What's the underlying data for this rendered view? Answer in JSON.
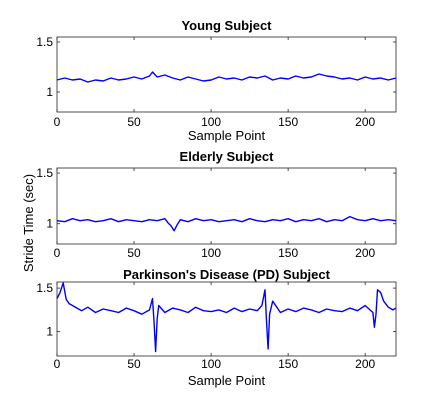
{
  "chart_data": [
    {
      "type": "line",
      "title": "Young Subject",
      "xlabel": "Sample Point",
      "ylabel": "",
      "xlim": [
        0,
        220
      ],
      "ylim": [
        0.8,
        1.55
      ],
      "xticks": [
        0,
        50,
        100,
        150,
        200
      ],
      "yticks": [
        1,
        1.5
      ],
      "ytick_labels": [
        "1",
        "1.5"
      ],
      "series": [
        {
          "color": "#0000ff",
          "x": [
            0,
            5,
            10,
            15,
            20,
            25,
            30,
            35,
            40,
            45,
            50,
            55,
            60,
            62,
            65,
            70,
            75,
            80,
            85,
            90,
            95,
            100,
            105,
            110,
            115,
            120,
            125,
            130,
            135,
            140,
            145,
            150,
            155,
            160,
            165,
            170,
            175,
            180,
            185,
            190,
            195,
            200,
            205,
            210,
            215,
            220
          ],
          "y": [
            1.12,
            1.14,
            1.12,
            1.13,
            1.1,
            1.12,
            1.11,
            1.14,
            1.12,
            1.13,
            1.15,
            1.13,
            1.16,
            1.2,
            1.15,
            1.17,
            1.14,
            1.12,
            1.15,
            1.13,
            1.11,
            1.12,
            1.15,
            1.13,
            1.14,
            1.12,
            1.15,
            1.14,
            1.16,
            1.12,
            1.14,
            1.13,
            1.16,
            1.14,
            1.15,
            1.18,
            1.16,
            1.15,
            1.13,
            1.14,
            1.12,
            1.15,
            1.13,
            1.14,
            1.12,
            1.14
          ]
        }
      ]
    },
    {
      "type": "line",
      "title": "Elderly Subject",
      "xlabel": "",
      "ylabel": "",
      "xlim": [
        0,
        220
      ],
      "ylim": [
        0.8,
        1.55
      ],
      "xticks": [
        0,
        50,
        100,
        150,
        200
      ],
      "yticks": [
        1,
        1.5
      ],
      "ytick_labels": [
        "1",
        "1.5"
      ],
      "series": [
        {
          "color": "#0000ff",
          "x": [
            0,
            5,
            10,
            15,
            20,
            25,
            30,
            35,
            40,
            45,
            50,
            55,
            60,
            65,
            70,
            72,
            74,
            76,
            78,
            80,
            85,
            90,
            95,
            100,
            105,
            110,
            115,
            120,
            125,
            130,
            135,
            140,
            145,
            150,
            155,
            160,
            165,
            170,
            175,
            180,
            185,
            190,
            195,
            200,
            205,
            210,
            215,
            220
          ],
          "y": [
            1.03,
            1.02,
            1.05,
            1.03,
            1.04,
            1.02,
            1.03,
            1.05,
            1.02,
            1.04,
            1.03,
            1.02,
            1.04,
            1.03,
            1.05,
            1.01,
            0.98,
            0.93,
            0.99,
            1.04,
            1.02,
            1.05,
            1.03,
            1.04,
            1.02,
            1.03,
            1.04,
            1.02,
            1.05,
            1.03,
            1.02,
            1.04,
            1.03,
            1.05,
            1.02,
            1.04,
            1.03,
            1.05,
            1.02,
            1.04,
            1.03,
            1.07,
            1.04,
            1.03,
            1.05,
            1.03,
            1.04,
            1.03
          ]
        }
      ]
    },
    {
      "type": "line",
      "title": "Parkinson's Disease (PD) Subject",
      "xlabel": "Sample Point",
      "ylabel": "",
      "xlim": [
        0,
        220
      ],
      "ylim": [
        0.72,
        1.57
      ],
      "xticks": [
        0,
        50,
        100,
        150,
        200
      ],
      "yticks": [
        1,
        1.5
      ],
      "ytick_labels": [
        "1",
        "1.5"
      ],
      "series": [
        {
          "color": "#0000ff",
          "x": [
            0,
            2,
            4,
            6,
            8,
            10,
            13,
            16,
            20,
            25,
            30,
            35,
            40,
            45,
            50,
            55,
            60,
            62,
            63,
            64,
            65,
            66,
            70,
            75,
            80,
            85,
            90,
            95,
            100,
            105,
            110,
            115,
            120,
            125,
            130,
            133,
            135,
            136,
            137,
            138,
            140,
            145,
            150,
            155,
            160,
            165,
            170,
            175,
            180,
            185,
            190,
            195,
            200,
            205,
            206,
            207,
            208,
            210,
            212,
            215,
            218,
            220
          ],
          "y": [
            1.38,
            1.45,
            1.56,
            1.37,
            1.32,
            1.3,
            1.27,
            1.24,
            1.28,
            1.22,
            1.26,
            1.24,
            1.22,
            1.27,
            1.24,
            1.2,
            1.25,
            1.38,
            1.1,
            0.77,
            1.15,
            1.3,
            1.22,
            1.27,
            1.25,
            1.22,
            1.28,
            1.24,
            1.23,
            1.25,
            1.22,
            1.27,
            1.23,
            1.26,
            1.24,
            1.3,
            1.48,
            1.1,
            0.8,
            1.2,
            1.35,
            1.22,
            1.26,
            1.23,
            1.27,
            1.25,
            1.22,
            1.26,
            1.24,
            1.23,
            1.27,
            1.24,
            1.3,
            1.22,
            1.05,
            1.2,
            1.48,
            1.45,
            1.35,
            1.28,
            1.25,
            1.27
          ]
        }
      ]
    }
  ],
  "shared": {
    "ylabel": "Stride Time (sec)",
    "line_color": "#0000ff"
  }
}
